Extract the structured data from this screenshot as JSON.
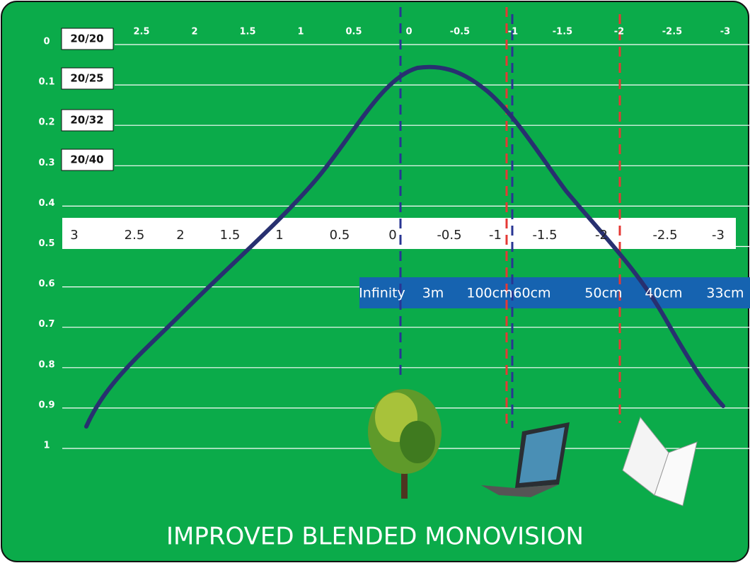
{
  "title": "IMPROVED BLENDED MONOVISION",
  "top_scale": [
    "2.5",
    "2",
    "1.5",
    "1",
    "0.5",
    "0",
    "-0.5",
    "-1",
    "-1.5",
    "-2",
    "-2.5",
    "-3"
  ],
  "left_scale": [
    "0",
    "0.1",
    "0.2",
    "0.3",
    "0.4",
    "0.5",
    "0.6",
    "0.7",
    "0.8",
    "0.9",
    "1"
  ],
  "acuity": [
    "20/20",
    "20/25",
    "20/32",
    "20/40"
  ],
  "diopter_strip": [
    "3",
    "2.5",
    "2",
    "1.5",
    "1",
    "0.5",
    "0",
    "-0.5",
    "-1",
    "-1.5",
    "-2",
    "-2.5",
    "-3"
  ],
  "distances": [
    "Infinity",
    "3m",
    "100cm",
    "60cm",
    "50cm",
    "40cm",
    "33cm"
  ]
}
